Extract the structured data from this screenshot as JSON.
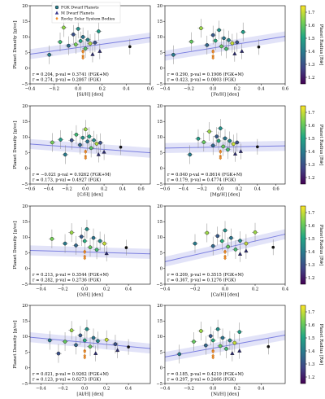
{
  "figure": {
    "legend": [
      {
        "label": "FGK Dwarf Planets",
        "marker": "circle",
        "color": "#2a7f8e"
      },
      {
        "label": "M Dwarf Planets",
        "marker": "triangle",
        "color": "#3b3b8f"
      },
      {
        "label": "Rocky Solar System Bodies",
        "marker": "diamond",
        "color": "#f28e2b"
      }
    ],
    "colorbar": {
      "label": "Planet Radius [R⊕]",
      "ticks": [
        "1.2",
        "1.3",
        "1.4",
        "1.5",
        "1.6",
        "1.7"
      ],
      "range": [
        1.15,
        1.75
      ]
    },
    "fit_color": "#7b7fe0"
  },
  "chart_data": [
    {
      "type": "scatter",
      "xlabel": "[Si/H] [dex]",
      "ylabel": "Planet Density [g/cc]",
      "xlim": [
        -0.4,
        0.6
      ],
      "ylim": [
        -5,
        20
      ],
      "xticks": [
        "−0.4",
        "−0.2",
        "0.0",
        "0.2",
        "0.4",
        "0.6"
      ],
      "yticks": [
        "−5",
        "0",
        "5",
        "10",
        "15",
        "20"
      ],
      "stats": [
        "r = 0.204, p-val = 0.3741 (FGK+M)",
        "r = 0.274, p-val = 0.2867 (FGK)"
      ],
      "fit": {
        "x": [
          -0.4,
          0.6
        ],
        "y": [
          4.5,
          9.8
        ]
      },
      "fgk": [
        {
          "x": -0.24,
          "y": 4.3,
          "r": 1.4
        },
        {
          "x": -0.15,
          "y": 8.4,
          "r": 1.55
        },
        {
          "x": -0.12,
          "y": 13.0,
          "r": 1.65
        },
        {
          "x": -0.08,
          "y": 7.2,
          "r": 1.35
        },
        {
          "x": -0.04,
          "y": 10.8,
          "r": 1.3
        },
        {
          "x": -0.02,
          "y": 7.6,
          "r": 1.62
        },
        {
          "x": 0.0,
          "y": 12.6,
          "r": 1.45
        },
        {
          "x": 0.02,
          "y": 8.7,
          "r": 1.5
        },
        {
          "x": 0.04,
          "y": 10.0,
          "r": 1.38
        },
        {
          "x": 0.06,
          "y": 6.3,
          "r": 1.58
        },
        {
          "x": 0.08,
          "y": 9.1,
          "r": 1.42
        },
        {
          "x": 0.1,
          "y": 7.9,
          "r": 1.68
        },
        {
          "x": 0.14,
          "y": 8.2,
          "r": 1.3
        },
        {
          "x": 0.17,
          "y": 11.8,
          "r": 1.48
        }
      ],
      "m": [
        {
          "x": 0.12,
          "y": 4.4
        },
        {
          "x": 0.18,
          "y": 5.4
        }
      ],
      "solar": [
        {
          "x": 0.04,
          "y": 5.5
        },
        {
          "x": 0.04,
          "y": 5.2
        },
        {
          "x": 0.04,
          "y": 3.9
        },
        {
          "x": 0.04,
          "y": 3.3
        }
      ],
      "black": [
        {
          "x": 0.43,
          "y": 6.9
        }
      ]
    },
    {
      "type": "scatter",
      "xlabel": "[Fe/H] [dex]",
      "ylabel": "",
      "xlim": [
        -0.4,
        0.6
      ],
      "ylim": [
        -5,
        20
      ],
      "xticks": [
        "−0.4",
        "−0.2",
        "0.0",
        "0.2",
        "0.4",
        "0.6"
      ],
      "yticks": [
        "−5",
        "0",
        "5",
        "10",
        "15",
        "20"
      ],
      "stats": [
        "r = 0.290, p-val = 0.1906 (FGK+M)",
        "r = 0.423, p-val = 0.0803 (FGK)"
      ],
      "fit": {
        "x": [
          -0.4,
          0.6
        ],
        "y": [
          4.0,
          10.2
        ]
      },
      "fgk": [
        {
          "x": -0.33,
          "y": 4.3,
          "r": 1.4
        },
        {
          "x": -0.18,
          "y": 8.5,
          "r": 1.6
        },
        {
          "x": -0.1,
          "y": 12.8,
          "r": 1.66
        },
        {
          "x": -0.05,
          "y": 7.4,
          "r": 1.35
        },
        {
          "x": 0.0,
          "y": 10.6,
          "r": 1.32
        },
        {
          "x": 0.02,
          "y": 8.8,
          "r": 1.52
        },
        {
          "x": 0.05,
          "y": 12.2,
          "r": 1.45
        },
        {
          "x": 0.07,
          "y": 7.0,
          "r": 1.6
        },
        {
          "x": 0.09,
          "y": 9.6,
          "r": 1.38
        },
        {
          "x": 0.11,
          "y": 6.2,
          "r": 1.56
        },
        {
          "x": 0.13,
          "y": 9.0,
          "r": 1.43
        },
        {
          "x": 0.16,
          "y": 8.0,
          "r": 1.7
        },
        {
          "x": 0.2,
          "y": 8.3,
          "r": 1.3
        },
        {
          "x": 0.25,
          "y": 11.6,
          "r": 1.48
        }
      ],
      "m": [
        {
          "x": 0.18,
          "y": 4.6
        },
        {
          "x": 0.24,
          "y": 5.4
        }
      ],
      "solar": [
        {
          "x": 0.0,
          "y": 5.5
        },
        {
          "x": 0.0,
          "y": 5.2
        },
        {
          "x": 0.0,
          "y": 3.9
        },
        {
          "x": 0.0,
          "y": 3.3
        }
      ],
      "black": [
        {
          "x": 0.38,
          "y": 6.8
        }
      ]
    },
    {
      "type": "scatter",
      "xlabel": "[C/H] [dex]",
      "ylabel": "Planet Density [g/cc]",
      "xlim": [
        -0.6,
        0.7
      ],
      "ylim": [
        -5,
        20
      ],
      "xticks": [
        "−0.6",
        "−0.4",
        "−0.2",
        "0.0",
        "0.2",
        "0.4",
        "0.6"
      ],
      "yticks": [
        "−5",
        "0",
        "5",
        "10",
        "15",
        "20"
      ],
      "stats": [
        "r = −0.021 p-val = 0.9262 (FGK+M)",
        "r = 0.173, p-val = 0.4927 (FGK)"
      ],
      "fit": {
        "x": [
          -0.6,
          0.7
        ],
        "y": [
          7.8,
          5.0
        ]
      },
      "fgk": [
        {
          "x": -0.36,
          "y": 8.3,
          "r": 1.62
        },
        {
          "x": -0.22,
          "y": 4.4,
          "r": 1.4
        },
        {
          "x": -0.15,
          "y": 9.0,
          "r": 1.3
        },
        {
          "x": -0.1,
          "y": 10.8,
          "r": 1.55
        },
        {
          "x": -0.06,
          "y": 7.5,
          "r": 1.35
        },
        {
          "x": -0.03,
          "y": 9.8,
          "r": 1.45
        },
        {
          "x": 0.0,
          "y": 12.5,
          "r": 1.66
        },
        {
          "x": 0.02,
          "y": 8.6,
          "r": 1.38
        },
        {
          "x": 0.04,
          "y": 10.2,
          "r": 1.5
        },
        {
          "x": 0.06,
          "y": 6.5,
          "r": 1.58
        },
        {
          "x": 0.09,
          "y": 9.0,
          "r": 1.42
        },
        {
          "x": 0.12,
          "y": 7.9,
          "r": 1.68
        },
        {
          "x": 0.16,
          "y": 8.2,
          "r": 1.3
        },
        {
          "x": -0.27,
          "y": 9.2,
          "r": 1.48
        }
      ],
      "m": [
        {
          "x": 0.14,
          "y": 4.4
        },
        {
          "x": 0.2,
          "y": 5.2
        }
      ],
      "solar": [
        {
          "x": 0.0,
          "y": 5.5
        },
        {
          "x": 0.0,
          "y": 5.2
        },
        {
          "x": 0.0,
          "y": 3.9
        },
        {
          "x": 0.0,
          "y": 3.3
        }
      ],
      "black": [
        {
          "x": 0.38,
          "y": 6.8
        }
      ]
    },
    {
      "type": "scatter",
      "xlabel": "[Mg/H] [dex]",
      "ylabel": "",
      "xlim": [
        -0.6,
        0.7
      ],
      "ylim": [
        -5,
        20
      ],
      "xticks": [
        "−0.6",
        "−0.4",
        "−0.2",
        "0.0",
        "0.2",
        "0.4",
        "0.6"
      ],
      "yticks": [
        "−5",
        "0",
        "5",
        "10",
        "15",
        "20"
      ],
      "stats": [
        "r = 0.040 p-val = 0.8614 (FGK+M)",
        "r = 0.179, p-val = 0.4774 (FGK)"
      ],
      "fit": {
        "x": [
          -0.6,
          0.7
        ],
        "y": [
          6.5,
          7.2
        ]
      },
      "fgk": [
        {
          "x": -0.33,
          "y": 4.4,
          "r": 1.4
        },
        {
          "x": -0.18,
          "y": 8.4,
          "r": 1.6
        },
        {
          "x": -0.12,
          "y": 11.8,
          "r": 1.66
        },
        {
          "x": -0.08,
          "y": 7.3,
          "r": 1.35
        },
        {
          "x": -0.04,
          "y": 10.2,
          "r": 1.32
        },
        {
          "x": -0.02,
          "y": 8.8,
          "r": 1.52
        },
        {
          "x": 0.0,
          "y": 12.8,
          "r": 1.45
        },
        {
          "x": 0.03,
          "y": 7.0,
          "r": 1.6
        },
        {
          "x": 0.05,
          "y": 9.6,
          "r": 1.38
        },
        {
          "x": 0.08,
          "y": 6.0,
          "r": 1.56
        },
        {
          "x": 0.1,
          "y": 8.8,
          "r": 1.43
        },
        {
          "x": 0.14,
          "y": 7.8,
          "r": 1.7
        },
        {
          "x": 0.18,
          "y": 8.3,
          "r": 1.3
        },
        {
          "x": -0.24,
          "y": 9.5,
          "r": 1.48
        }
      ],
      "m": [
        {
          "x": 0.16,
          "y": 4.6
        },
        {
          "x": 0.22,
          "y": 5.4
        }
      ],
      "solar": [
        {
          "x": 0.0,
          "y": 5.5
        },
        {
          "x": 0.0,
          "y": 5.2
        },
        {
          "x": 0.0,
          "y": 3.9
        },
        {
          "x": 0.0,
          "y": 3.3
        }
      ],
      "black": [
        {
          "x": 0.4,
          "y": 6.9
        }
      ]
    },
    {
      "type": "scatter",
      "xlabel": "[O/H] [dex]",
      "ylabel": "Planet Density [g/cc]",
      "xlim": [
        -0.5,
        0.6
      ],
      "ylim": [
        -5,
        20
      ],
      "xticks": [
        "−0.4",
        "−0.2",
        "0.0",
        "0.2",
        "0.4"
      ],
      "yticks": [
        "−5",
        "0",
        "5",
        "10",
        "15",
        "20"
      ],
      "stats": [
        "r = 0.213, p-val = 0.3544 (FGK+M)",
        "r = 0.282, p-val = 0.2736 (FGK)"
      ],
      "fit": {
        "x": [
          -0.5,
          0.6
        ],
        "y": [
          5.8,
          4.7
        ]
      },
      "fgk": [
        {
          "x": -0.3,
          "y": 9.5,
          "r": 1.62
        },
        {
          "x": -0.18,
          "y": 8.0,
          "r": 1.4
        },
        {
          "x": -0.12,
          "y": 11.5,
          "r": 1.66
        },
        {
          "x": -0.08,
          "y": 7.4,
          "r": 1.35
        },
        {
          "x": -0.03,
          "y": 10.2,
          "r": 1.32
        },
        {
          "x": 0.0,
          "y": 8.8,
          "r": 1.52
        },
        {
          "x": 0.02,
          "y": 12.6,
          "r": 1.45
        },
        {
          "x": 0.05,
          "y": 6.8,
          "r": 1.6
        },
        {
          "x": 0.08,
          "y": 9.8,
          "r": 1.38
        },
        {
          "x": 0.11,
          "y": 6.0,
          "r": 1.56
        },
        {
          "x": 0.14,
          "y": 8.8,
          "r": 1.43
        },
        {
          "x": 0.18,
          "y": 8.0,
          "r": 1.7
        }
      ],
      "m": [
        {
          "x": 0.2,
          "y": 4.8
        }
      ],
      "solar": [
        {
          "x": 0.0,
          "y": 5.5
        },
        {
          "x": 0.0,
          "y": 5.2
        },
        {
          "x": 0.0,
          "y": 3.9
        },
        {
          "x": 0.0,
          "y": 3.3
        }
      ],
      "black": [
        {
          "x": 0.38,
          "y": 6.7
        }
      ]
    },
    {
      "type": "scatter",
      "xlabel": "[Ca/H] [dex]",
      "ylabel": "",
      "xlim": [
        -0.4,
        0.4
      ],
      "ylim": [
        -5,
        20
      ],
      "xticks": [
        "−0.4",
        "−0.2",
        "0.0",
        "0.2",
        "0.4"
      ],
      "yticks": [
        "−5",
        "0",
        "5",
        "10",
        "15",
        "20"
      ],
      "stats": [
        "r = 0.209, p-val = 0.3515 (FGK+M)",
        "r = 0.367, p-val = 0.1276 (FGK)"
      ],
      "fit": {
        "x": [
          -0.4,
          0.4
        ],
        "y": [
          2.2,
          11.0
        ]
      },
      "fgk": [
        {
          "x": -0.2,
          "y": 8.0,
          "r": 1.4
        },
        {
          "x": -0.12,
          "y": 11.4,
          "r": 1.66
        },
        {
          "x": -0.08,
          "y": 7.2,
          "r": 1.35
        },
        {
          "x": -0.05,
          "y": 10.4,
          "r": 1.32
        },
        {
          "x": -0.02,
          "y": 8.8,
          "r": 1.52
        },
        {
          "x": 0.0,
          "y": 12.2,
          "r": 1.45
        },
        {
          "x": 0.02,
          "y": 7.0,
          "r": 1.6
        },
        {
          "x": 0.04,
          "y": 9.8,
          "r": 1.38
        },
        {
          "x": 0.07,
          "y": 6.1,
          "r": 1.56
        },
        {
          "x": 0.1,
          "y": 8.9,
          "r": 1.43
        },
        {
          "x": 0.14,
          "y": 8.0,
          "r": 1.7
        },
        {
          "x": 0.2,
          "y": 11.6,
          "r": 1.66
        }
      ],
      "m": [
        {
          "x": 0.1,
          "y": 4.6
        },
        {
          "x": 0.14,
          "y": 5.6
        }
      ],
      "solar": [
        {
          "x": 0.0,
          "y": 5.5
        },
        {
          "x": 0.0,
          "y": 5.2
        },
        {
          "x": 0.0,
          "y": 3.9
        },
        {
          "x": 0.0,
          "y": 3.3
        }
      ],
      "black": [
        {
          "x": 0.32,
          "y": 6.8
        }
      ]
    },
    {
      "type": "scatter",
      "xlabel": "[Al/H] [dex]",
      "ylabel": "Planet Density [g/cc]",
      "xlim": [
        -0.5,
        0.6
      ],
      "ylim": [
        -5,
        20
      ],
      "xticks": [
        "−0.4",
        "−0.2",
        "0.0",
        "0.2",
        "0.4"
      ],
      "yticks": [
        "−5",
        "0",
        "5",
        "10",
        "15",
        "20"
      ],
      "stats": [
        "r = 0.021, p-val = 0.9262 (FGK+M)",
        "r = 0.123, p-val = 0.6273 (FGK)"
      ],
      "fit": {
        "x": [
          -0.5,
          0.6
        ],
        "y": [
          9.8,
          6.2
        ]
      },
      "fgk": [
        {
          "x": -0.32,
          "y": 8.8,
          "r": 1.4
        },
        {
          "x": -0.24,
          "y": 4.6,
          "r": 1.3
        },
        {
          "x": -0.18,
          "y": 8.4,
          "r": 1.6
        },
        {
          "x": -0.12,
          "y": 12.0,
          "r": 1.66
        },
        {
          "x": -0.08,
          "y": 7.3,
          "r": 1.35
        },
        {
          "x": -0.04,
          "y": 10.4,
          "r": 1.32
        },
        {
          "x": 0.0,
          "y": 8.8,
          "r": 1.52
        },
        {
          "x": 0.02,
          "y": 12.4,
          "r": 1.45
        },
        {
          "x": 0.05,
          "y": 6.8,
          "r": 1.6
        },
        {
          "x": 0.08,
          "y": 9.6,
          "r": 1.38
        },
        {
          "x": 0.12,
          "y": 8.6,
          "r": 1.43
        },
        {
          "x": 0.2,
          "y": 9.0,
          "r": 1.7
        },
        {
          "x": 0.28,
          "y": 7.6,
          "r": 1.3
        }
      ],
      "m": [
        {
          "x": 0.1,
          "y": 4.6
        },
        {
          "x": 0.3,
          "y": 5.6
        }
      ],
      "solar": [
        {
          "x": 0.0,
          "y": 5.5
        },
        {
          "x": 0.0,
          "y": 5.2
        },
        {
          "x": 0.0,
          "y": 3.9
        },
        {
          "x": 0.0,
          "y": 3.3
        }
      ],
      "black": [
        {
          "x": 0.4,
          "y": 6.7
        }
      ]
    },
    {
      "type": "scatter",
      "xlabel": "[Ni/H] [dex]",
      "ylabel": "",
      "xlim": [
        -0.4,
        0.6
      ],
      "ylim": [
        -5,
        20
      ],
      "xticks": [
        "−0.4",
        "−0.2",
        "0.0",
        "0.2",
        "0.4"
      ],
      "yticks": [
        "−5",
        "0",
        "5",
        "10",
        "15",
        "20"
      ],
      "stats": [
        "r = 0.185, p-val = 0.4219 (FGK+M)",
        "r = 0.297, p-val = 0.2466 (FGK)"
      ],
      "fit": {
        "x": [
          -0.4,
          0.6
        ],
        "y": [
          3.5,
          10.5
        ]
      },
      "fgk": [
        {
          "x": -0.28,
          "y": 4.4,
          "r": 1.4
        },
        {
          "x": -0.16,
          "y": 8.4,
          "r": 1.6
        },
        {
          "x": -0.1,
          "y": 11.8,
          "r": 1.66
        },
        {
          "x": -0.06,
          "y": 7.2,
          "r": 1.35
        },
        {
          "x": -0.02,
          "y": 10.2,
          "r": 1.32
        },
        {
          "x": 0.0,
          "y": 8.8,
          "r": 1.52
        },
        {
          "x": 0.04,
          "y": 12.4,
          "r": 1.45
        },
        {
          "x": 0.06,
          "y": 7.0,
          "r": 1.6
        },
        {
          "x": 0.08,
          "y": 9.6,
          "r": 1.38
        },
        {
          "x": 0.11,
          "y": 6.1,
          "r": 1.56
        },
        {
          "x": 0.14,
          "y": 8.8,
          "r": 1.43
        },
        {
          "x": 0.18,
          "y": 8.0,
          "r": 1.7
        },
        {
          "x": 0.22,
          "y": 11.5,
          "r": 1.48
        }
      ],
      "m": [
        {
          "x": 0.16,
          "y": 4.6
        },
        {
          "x": 0.22,
          "y": 5.4
        }
      ],
      "solar": [
        {
          "x": 0.0,
          "y": 5.5
        },
        {
          "x": 0.0,
          "y": 5.2
        },
        {
          "x": 0.0,
          "y": 3.9
        },
        {
          "x": 0.0,
          "y": 3.3
        }
      ],
      "black": [
        {
          "x": 0.46,
          "y": 6.8
        }
      ]
    }
  ]
}
